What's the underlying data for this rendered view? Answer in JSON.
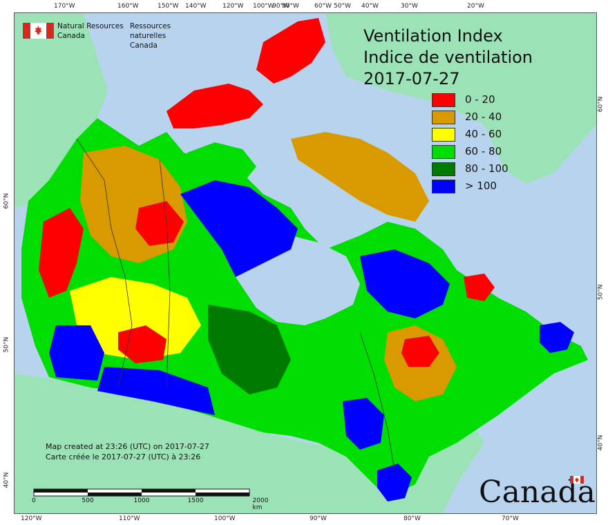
{
  "title_en": "Ventilation Index",
  "title_fr": "Indice de ventilation",
  "date": "2017-07-27",
  "legend": [
    {
      "label": "0 - 20",
      "color": "#ff0000"
    },
    {
      "label": "20 - 40",
      "color": "#d99a00"
    },
    {
      "label": "40 - 60",
      "color": "#ffff00"
    },
    {
      "label": "60 - 80",
      "color": "#00dd00"
    },
    {
      "label": "80 - 100",
      "color": "#007a00"
    },
    {
      "label": "> 100",
      "color": "#0000ff"
    }
  ],
  "agency": {
    "en_line1": "Natural Resources",
    "en_line2": "Canada",
    "fr_line1": "Ressources naturelles",
    "fr_line2": "Canada"
  },
  "created_en": "Map created at 23:26 (UTC) on 2017-07-27",
  "created_fr": "Carte créée le 2017-07-27 (UTC) à 23:26",
  "scale": {
    "ticks": [
      "0",
      "500",
      "1000",
      "1500",
      "2000 km"
    ]
  },
  "wordmark": "Canada",
  "top_longitudes": [
    "170°W",
    "160°W",
    "150°W",
    "140°W",
    "120°W",
    "100°W",
    "90°W",
    "80°W",
    "60°W",
    "50°W",
    "40°W",
    "30°W",
    "20°W"
  ],
  "bottom_longitudes": [
    "120°W",
    "110°W",
    "100°W",
    "90°W",
    "80°W",
    "70°W"
  ],
  "left_latitudes": [
    "60°N",
    "50°N",
    "40°N"
  ],
  "right_latitudes": [
    "60°N",
    "50°N",
    "40°N"
  ],
  "colors": {
    "water": "#b8d3ee",
    "foreign_land": "#9be3b6",
    "land": "#f0f0f0",
    "border": "#333333"
  }
}
